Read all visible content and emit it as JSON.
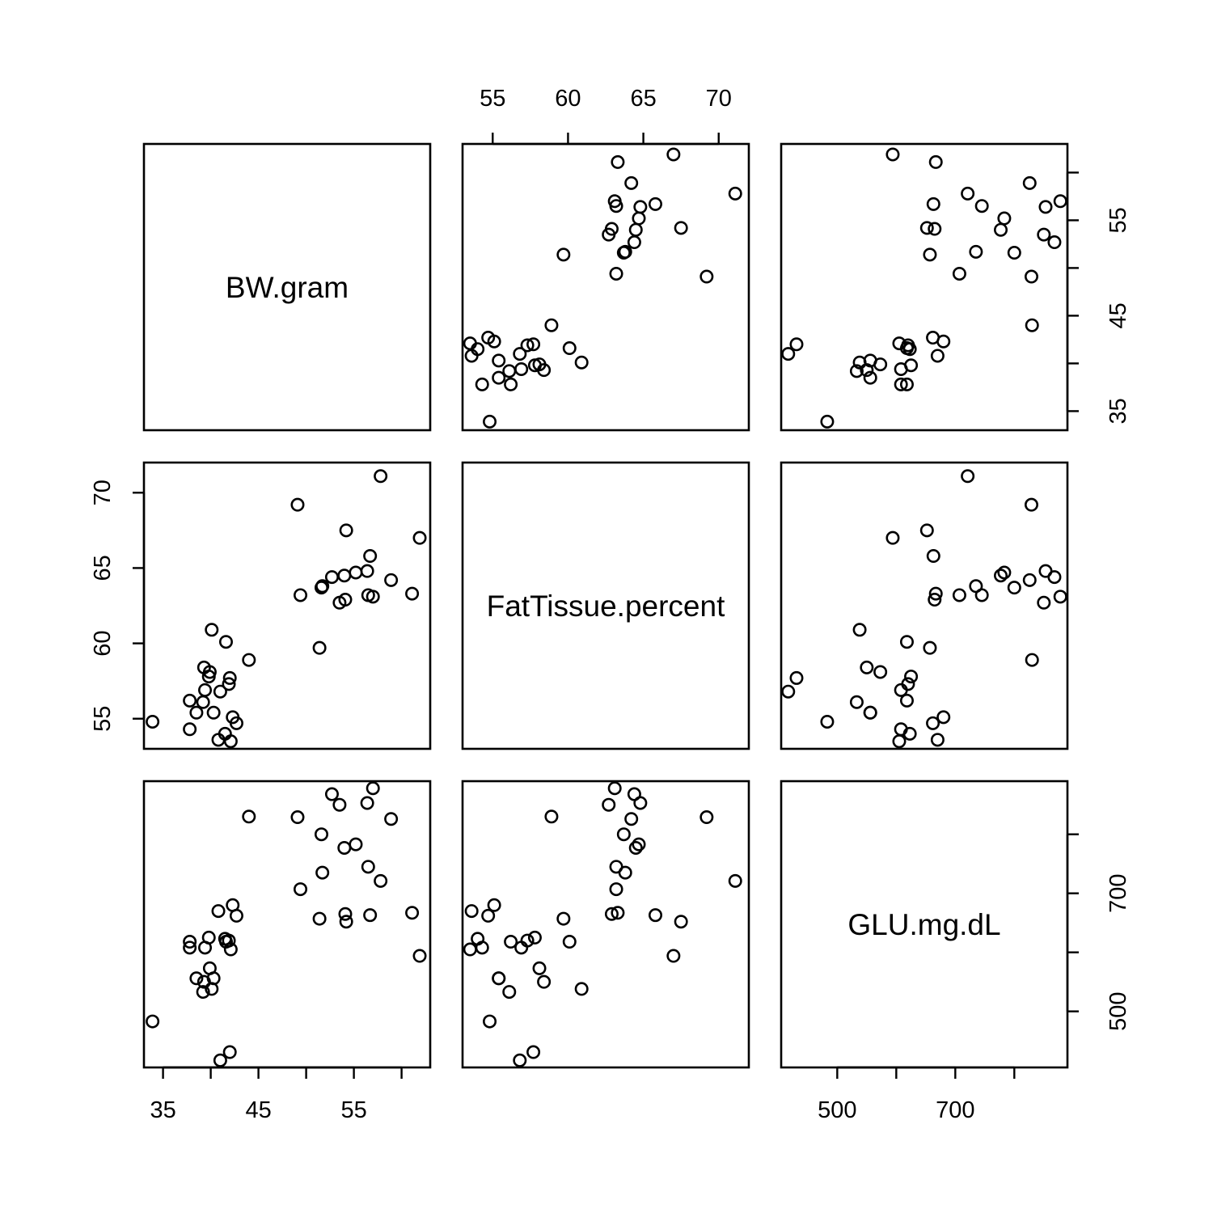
{
  "chart_data": {
    "type": "scatter",
    "subtype": "scatterplot-matrix",
    "variables": [
      "BW.gram",
      "FatTissue.percent",
      "GLU.mg.dL"
    ],
    "axes": {
      "BW.gram": {
        "range": [
          33,
          63
        ],
        "ticks": [
          35,
          45,
          55
        ],
        "right_ticks": [
          35,
          40,
          45,
          50,
          55,
          60
        ],
        "right_tick_labels": [
          "35",
          "",
          "45",
          "",
          "55",
          ""
        ]
      },
      "FatTissue.percent": {
        "range": [
          53,
          72
        ],
        "ticks": [
          55,
          60,
          65,
          70
        ]
      },
      "GLU.mg.dL": {
        "range": [
          405,
          890
        ],
        "bottom_ticks": [
          500,
          700
        ],
        "right_ticks": [
          500,
          600,
          700,
          800
        ],
        "right_tick_labels": [
          "500",
          "",
          "700",
          ""
        ]
      }
    },
    "points": [
      {
        "BW.gram": 33.9,
        "FatTissue.percent": 54.8,
        "GLU.mg.dL": 483
      },
      {
        "BW.gram": 37.8,
        "FatTissue.percent": 56.2,
        "GLU.mg.dL": 618
      },
      {
        "BW.gram": 37.8,
        "FatTissue.percent": 54.3,
        "GLU.mg.dL": 608
      },
      {
        "BW.gram": 38.5,
        "FatTissue.percent": 55.4,
        "GLU.mg.dL": 556
      },
      {
        "BW.gram": 39.2,
        "FatTissue.percent": 56.1,
        "GLU.mg.dL": 533
      },
      {
        "BW.gram": 39.3,
        "FatTissue.percent": 58.4,
        "GLU.mg.dL": 550
      },
      {
        "BW.gram": 39.4,
        "FatTissue.percent": 56.9,
        "GLU.mg.dL": 608
      },
      {
        "BW.gram": 39.8,
        "FatTissue.percent": 57.8,
        "GLU.mg.dL": 625
      },
      {
        "BW.gram": 39.9,
        "FatTissue.percent": 58.1,
        "GLU.mg.dL": 573
      },
      {
        "BW.gram": 40.1,
        "FatTissue.percent": 60.9,
        "GLU.mg.dL": 538
      },
      {
        "BW.gram": 40.3,
        "FatTissue.percent": 55.4,
        "GLU.mg.dL": 556
      },
      {
        "BW.gram": 40.8,
        "FatTissue.percent": 53.6,
        "GLU.mg.dL": 670
      },
      {
        "BW.gram": 41.0,
        "FatTissue.percent": 56.8,
        "GLU.mg.dL": 417
      },
      {
        "BW.gram": 41.5,
        "FatTissue.percent": 54.0,
        "GLU.mg.dL": 623
      },
      {
        "BW.gram": 41.6,
        "FatTissue.percent": 60.1,
        "GLU.mg.dL": 618
      },
      {
        "BW.gram": 41.9,
        "FatTissue.percent": 57.3,
        "GLU.mg.dL": 620
      },
      {
        "BW.gram": 42.0,
        "FatTissue.percent": 57.7,
        "GLU.mg.dL": 431
      },
      {
        "BW.gram": 42.1,
        "FatTissue.percent": 53.5,
        "GLU.mg.dL": 605
      },
      {
        "BW.gram": 42.3,
        "FatTissue.percent": 55.1,
        "GLU.mg.dL": 680
      },
      {
        "BW.gram": 42.7,
        "FatTissue.percent": 54.7,
        "GLU.mg.dL": 662
      },
      {
        "BW.gram": 44.0,
        "FatTissue.percent": 58.9,
        "GLU.mg.dL": 830
      },
      {
        "BW.gram": 49.1,
        "FatTissue.percent": 69.2,
        "GLU.mg.dL": 829
      },
      {
        "BW.gram": 49.4,
        "FatTissue.percent": 63.2,
        "GLU.mg.dL": 707
      },
      {
        "BW.gram": 51.4,
        "FatTissue.percent": 59.7,
        "GLU.mg.dL": 657
      },
      {
        "BW.gram": 51.6,
        "FatTissue.percent": 63.7,
        "GLU.mg.dL": 800
      },
      {
        "BW.gram": 51.7,
        "FatTissue.percent": 63.8,
        "GLU.mg.dL": 735
      },
      {
        "BW.gram": 52.7,
        "FatTissue.percent": 64.4,
        "GLU.mg.dL": 868
      },
      {
        "BW.gram": 53.5,
        "FatTissue.percent": 62.7,
        "GLU.mg.dL": 850
      },
      {
        "BW.gram": 54.0,
        "FatTissue.percent": 64.5,
        "GLU.mg.dL": 777
      },
      {
        "BW.gram": 54.1,
        "FatTissue.percent": 62.9,
        "GLU.mg.dL": 665
      },
      {
        "BW.gram": 54.2,
        "FatTissue.percent": 67.5,
        "GLU.mg.dL": 652
      },
      {
        "BW.gram": 55.2,
        "FatTissue.percent": 64.7,
        "GLU.mg.dL": 783
      },
      {
        "BW.gram": 56.4,
        "FatTissue.percent": 64.8,
        "GLU.mg.dL": 853
      },
      {
        "BW.gram": 56.5,
        "FatTissue.percent": 63.2,
        "GLU.mg.dL": 745
      },
      {
        "BW.gram": 56.7,
        "FatTissue.percent": 65.8,
        "GLU.mg.dL": 663
      },
      {
        "BW.gram": 57.0,
        "FatTissue.percent": 63.1,
        "GLU.mg.dL": 878
      },
      {
        "BW.gram": 57.8,
        "FatTissue.percent": 71.1,
        "GLU.mg.dL": 721
      },
      {
        "BW.gram": 58.9,
        "FatTissue.percent": 64.2,
        "GLU.mg.dL": 826
      },
      {
        "BW.gram": 61.1,
        "FatTissue.percent": 63.3,
        "GLU.mg.dL": 667
      },
      {
        "BW.gram": 61.9,
        "FatTissue.percent": 67.0,
        "GLU.mg.dL": 594
      }
    ]
  }
}
